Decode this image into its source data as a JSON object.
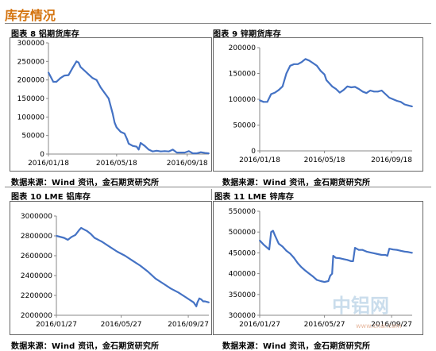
{
  "section_title": "库存情况",
  "source_text": "数据来源：Wind 资讯，金石期货研究所",
  "watermark": {
    "cn": "中铝网",
    "url": "www.cnal.com"
  },
  "colors": {
    "line": "#4472c4",
    "title": "#d4730e"
  },
  "chart_data": [
    {
      "id": "c1",
      "type": "line",
      "caption": "图表 8 铝期货库存",
      "ylim": [
        0,
        300000
      ],
      "yticks": [
        0,
        50000,
        100000,
        150000,
        200000,
        250000,
        300000
      ],
      "xlim": [
        0,
        40
      ],
      "xticks": [
        {
          "x": 0,
          "label": "2016/01/18"
        },
        {
          "x": 17,
          "label": "2016/05/18"
        },
        {
          "x": 34.6,
          "label": "2016/09/18"
        }
      ],
      "series": [
        {
          "values": [
            [
              0,
              220000
            ],
            [
              1.2,
              195000
            ],
            [
              2,
              195000
            ],
            [
              3,
              205000
            ],
            [
              4,
              212000
            ],
            [
              5,
              213000
            ],
            [
              6,
              232000
            ],
            [
              7,
              250000
            ],
            [
              7.5,
              247000
            ],
            [
              8,
              235000
            ],
            [
              9,
              225000
            ],
            [
              10,
              215000
            ],
            [
              11,
              205000
            ],
            [
              12,
              200000
            ],
            [
              13,
              180000
            ],
            [
              14,
              165000
            ],
            [
              15,
              150000
            ],
            [
              16,
              110000
            ],
            [
              16.5,
              85000
            ],
            [
              17,
              72000
            ],
            [
              18,
              60000
            ],
            [
              19,
              55000
            ],
            [
              19.6,
              40000
            ],
            [
              20,
              28000
            ],
            [
              21,
              22000
            ],
            [
              22,
              20000
            ],
            [
              22.5,
              12000
            ],
            [
              23,
              30000
            ],
            [
              24,
              22000
            ],
            [
              25,
              12000
            ],
            [
              26,
              7000
            ],
            [
              27,
              9000
            ],
            [
              28,
              7000
            ],
            [
              29,
              8000
            ],
            [
              30,
              7000
            ],
            [
              31,
              12000
            ],
            [
              32,
              4000
            ],
            [
              33,
              4000
            ],
            [
              34,
              4000
            ],
            [
              35,
              8000
            ],
            [
              36,
              2000
            ],
            [
              37,
              2000
            ],
            [
              38,
              5000
            ],
            [
              39,
              3000
            ],
            [
              40,
              2000
            ]
          ]
        }
      ]
    },
    {
      "id": "c2",
      "type": "line",
      "caption": "图表 9 锌期货库存",
      "ylim": [
        0,
        200000
      ],
      "yticks": [
        0,
        50000,
        100000,
        150000,
        200000
      ],
      "xlim": [
        0,
        40
      ],
      "xticks": [
        {
          "x": 0,
          "label": "2016/01/18"
        },
        {
          "x": 17,
          "label": "2016/05/18"
        },
        {
          "x": 34.6,
          "label": "2016/09/18"
        }
      ],
      "series": [
        {
          "values": [
            [
              0,
              98000
            ],
            [
              1,
              95000
            ],
            [
              2,
              95000
            ],
            [
              3,
              110000
            ],
            [
              4,
              113000
            ],
            [
              5,
              118000
            ],
            [
              6,
              125000
            ],
            [
              7,
              150000
            ],
            [
              8,
              165000
            ],
            [
              9,
              168000
            ],
            [
              10,
              168000
            ],
            [
              11,
              172000
            ],
            [
              12,
              178000
            ],
            [
              13,
              175000
            ],
            [
              14,
              170000
            ],
            [
              15,
              165000
            ],
            [
              16,
              155000
            ],
            [
              17,
              148000
            ],
            [
              17.5,
              137000
            ],
            [
              18,
              133000
            ],
            [
              19,
              125000
            ],
            [
              20,
              120000
            ],
            [
              21,
              113000
            ],
            [
              22,
              118000
            ],
            [
              23,
              125000
            ],
            [
              24,
              123000
            ],
            [
              25,
              124000
            ],
            [
              26,
              120000
            ],
            [
              27,
              115000
            ],
            [
              28,
              112000
            ],
            [
              29,
              117000
            ],
            [
              30,
              115000
            ],
            [
              31,
              115000
            ],
            [
              32,
              117000
            ],
            [
              33,
              110000
            ],
            [
              34,
              103000
            ],
            [
              35,
              100000
            ],
            [
              36,
              97000
            ],
            [
              37,
              95000
            ],
            [
              38,
              90000
            ],
            [
              39,
              88000
            ],
            [
              40,
              86000
            ]
          ]
        }
      ]
    },
    {
      "id": "c3",
      "type": "line",
      "caption": "图表 10 LME 铝库存",
      "ylim": [
        2000000,
        3000000
      ],
      "yticks": [
        2000000,
        2200000,
        2400000,
        2600000,
        2800000,
        3000000
      ],
      "xlim": [
        0,
        40
      ],
      "xticks": [
        {
          "x": 0,
          "label": "2016/01/27"
        },
        {
          "x": 17,
          "label": "2016/05/27"
        },
        {
          "x": 34.6,
          "label": "2016/09/27"
        }
      ],
      "series": [
        {
          "values": [
            [
              0,
              2800000
            ],
            [
              2,
              2780000
            ],
            [
              3,
              2760000
            ],
            [
              4,
              2790000
            ],
            [
              5,
              2810000
            ],
            [
              6,
              2860000
            ],
            [
              6.5,
              2880000
            ],
            [
              7,
              2870000
            ],
            [
              8,
              2850000
            ],
            [
              9,
              2820000
            ],
            [
              10,
              2780000
            ],
            [
              12,
              2740000
            ],
            [
              14,
              2690000
            ],
            [
              16,
              2640000
            ],
            [
              18,
              2600000
            ],
            [
              20,
              2550000
            ],
            [
              22,
              2500000
            ],
            [
              24,
              2440000
            ],
            [
              26,
              2370000
            ],
            [
              28,
              2320000
            ],
            [
              30,
              2270000
            ],
            [
              32,
              2230000
            ],
            [
              34,
              2180000
            ],
            [
              36,
              2130000
            ],
            [
              36.7,
              2090000
            ],
            [
              37,
              2130000
            ],
            [
              37.5,
              2170000
            ],
            [
              38,
              2160000
            ],
            [
              38.5,
              2140000
            ],
            [
              39,
              2140000
            ],
            [
              40,
              2130000
            ]
          ]
        }
      ]
    },
    {
      "id": "c4",
      "type": "line",
      "caption": "图表 11 LME 锌库存",
      "ylim": [
        300000,
        550000
      ],
      "yticks": [
        300000,
        350000,
        400000,
        450000,
        500000,
        550000
      ],
      "xlim": [
        0,
        40
      ],
      "xticks": [
        {
          "x": 0,
          "label": "2016/01/27"
        },
        {
          "x": 17,
          "label": "2016/05/27"
        },
        {
          "x": 34.6,
          "label": "2016/09/27"
        }
      ],
      "series": [
        {
          "values": [
            [
              0,
              480000
            ],
            [
              1,
              470000
            ],
            [
              2,
              462000
            ],
            [
              2.5,
              458000
            ],
            [
              3,
              500000
            ],
            [
              3.5,
              503000
            ],
            [
              4,
              492000
            ],
            [
              5,
              472000
            ],
            [
              6,
              465000
            ],
            [
              7,
              455000
            ],
            [
              8,
              448000
            ],
            [
              9,
              438000
            ],
            [
              10,
              425000
            ],
            [
              11,
              415000
            ],
            [
              12,
              407000
            ],
            [
              13,
              400000
            ],
            [
              14,
              393000
            ],
            [
              15,
              385000
            ],
            [
              16,
              382000
            ],
            [
              17,
              380000
            ],
            [
              18,
              382000
            ],
            [
              18.5,
              395000
            ],
            [
              19,
              400000
            ],
            [
              19.3,
              443000
            ],
            [
              20,
              438000
            ],
            [
              21,
              437000
            ],
            [
              22,
              435000
            ],
            [
              23,
              433000
            ],
            [
              24,
              430000
            ],
            [
              24.5,
              430000
            ],
            [
              25,
              462000
            ],
            [
              26,
              457000
            ],
            [
              27,
              457000
            ],
            [
              28,
              453000
            ],
            [
              29,
              451000
            ],
            [
              30,
              449000
            ],
            [
              31,
              447000
            ],
            [
              32,
              445000
            ],
            [
              33,
              445000
            ],
            [
              33.5,
              443000
            ],
            [
              34,
              460000
            ],
            [
              35,
              458000
            ],
            [
              36,
              457000
            ],
            [
              37,
              455000
            ],
            [
              38,
              453000
            ],
            [
              39,
              452000
            ],
            [
              40,
              450000
            ]
          ]
        }
      ]
    }
  ]
}
